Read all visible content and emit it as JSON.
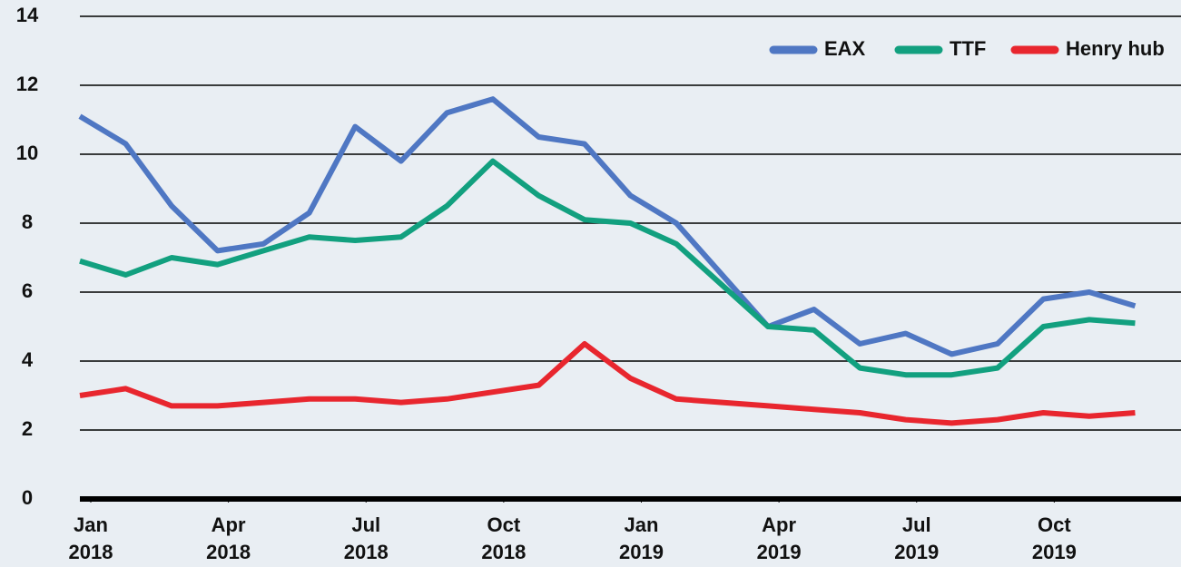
{
  "chart_data": {
    "type": "line",
    "x": [
      "2018-01",
      "2018-02",
      "2018-03",
      "2018-04",
      "2018-05",
      "2018-06",
      "2018-07",
      "2018-08",
      "2018-09",
      "2018-10",
      "2018-11",
      "2018-12",
      "2019-01",
      "2019-02",
      "2019-03",
      "2019-04",
      "2019-05",
      "2019-06",
      "2019-07",
      "2019-08",
      "2019-09",
      "2019-10",
      "2019-11",
      "2019-12"
    ],
    "series": [
      {
        "name": "EAX",
        "color": "#4f77c3",
        "values": [
          11.1,
          10.3,
          8.5,
          7.2,
          7.4,
          8.3,
          10.8,
          9.8,
          11.2,
          11.6,
          10.5,
          10.3,
          8.8,
          8.0,
          6.5,
          5.0,
          5.5,
          4.5,
          4.8,
          4.2,
          4.5,
          5.8,
          6.0,
          5.6
        ]
      },
      {
        "name": "TTF",
        "color": "#12a07f",
        "values": [
          6.9,
          6.5,
          7.0,
          6.8,
          7.2,
          7.6,
          7.5,
          7.6,
          8.5,
          9.8,
          8.8,
          8.1,
          8.0,
          7.4,
          6.2,
          5.0,
          4.9,
          3.8,
          3.6,
          3.6,
          3.8,
          5.0,
          5.2,
          5.1
        ]
      },
      {
        "name": "Henry hub",
        "color": "#e8262e",
        "values": [
          3.0,
          3.2,
          2.7,
          2.7,
          2.8,
          2.9,
          2.9,
          2.8,
          2.9,
          3.1,
          3.3,
          4.5,
          3.5,
          2.9,
          2.8,
          2.7,
          2.6,
          2.5,
          2.3,
          2.2,
          2.3,
          2.5,
          2.4,
          2.5
        ]
      }
    ],
    "xlim": [
      "2018-01",
      "2020-01"
    ],
    "xticks": [
      {
        "value": "2018-01",
        "label": "Jan 2018"
      },
      {
        "value": "2018-04",
        "label": "Apr 2018"
      },
      {
        "value": "2018-07",
        "label": "Jul 2018"
      },
      {
        "value": "2018-10",
        "label": "Oct 2018"
      },
      {
        "value": "2019-01",
        "label": "Jan 2019"
      },
      {
        "value": "2019-04",
        "label": "Apr 2019"
      },
      {
        "value": "2019-07",
        "label": "Jul 2019"
      },
      {
        "value": "2019-10",
        "label": "Oct 2019"
      }
    ],
    "ylim": [
      0,
      14
    ],
    "yticks": [
      0,
      2,
      4,
      6,
      8,
      10,
      12,
      14
    ],
    "grid": true,
    "legend": "top-right"
  }
}
